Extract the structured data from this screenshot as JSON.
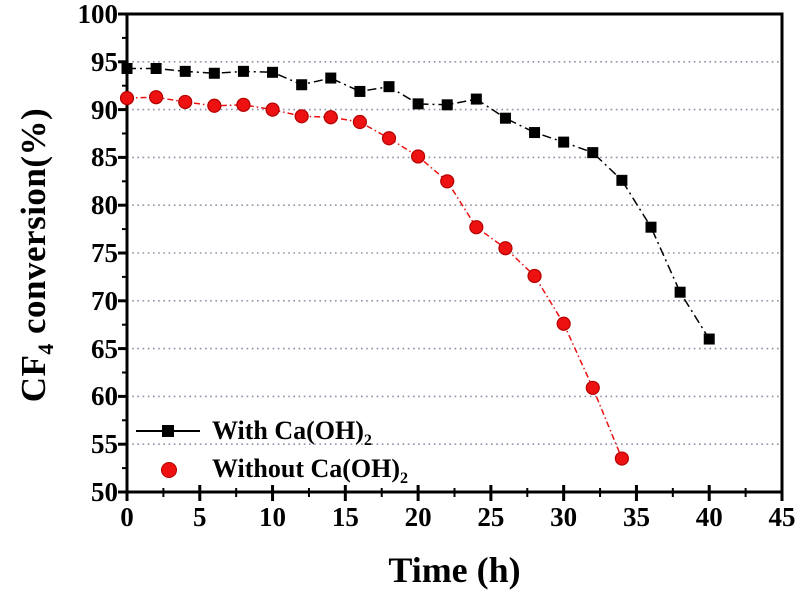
{
  "labels": {
    "ylabel_main": "CF",
    "ylabel_sub": "4",
    "ylabel_rest": " conversion(%)",
    "xlabel": "Time (h)"
  },
  "legend": {
    "item1_main": "With Ca(OH)",
    "item1_sub": "2",
    "item2_main": "Without Ca(OH)",
    "item2_sub": "2"
  },
  "chart_data": {
    "type": "line",
    "title": "",
    "xlabel": "Time (h)",
    "ylabel": "CF4 conversion(%)",
    "xlim": [
      0,
      45
    ],
    "ylim": [
      50,
      100
    ],
    "x_ticks": [
      0,
      5,
      10,
      15,
      20,
      25,
      30,
      35,
      40,
      45
    ],
    "y_ticks": [
      50,
      55,
      60,
      65,
      70,
      75,
      80,
      85,
      90,
      95,
      100
    ],
    "grid": "horizontal-dotted",
    "grid_color": "#8f8fa8",
    "legend_position": "lower-left",
    "series": [
      {
        "name": "With Ca(OH)2",
        "label_main": "With Ca(OH)",
        "label_sub": "2",
        "marker": "square",
        "color": "#000000",
        "edge_color": "#000000",
        "dash": "9 4 2 4",
        "x": [
          0,
          2,
          4,
          6,
          8,
          10,
          12,
          14,
          16,
          18,
          20,
          22,
          24,
          26,
          28,
          30,
          32,
          34,
          36,
          38,
          40
        ],
        "y": [
          94.3,
          94.3,
          94.0,
          93.8,
          94.0,
          93.9,
          92.6,
          93.3,
          91.9,
          92.4,
          90.6,
          90.5,
          91.1,
          89.1,
          87.6,
          86.6,
          85.5,
          82.6,
          77.7,
          70.9,
          66.0
        ]
      },
      {
        "name": "Without Ca(OH)2",
        "label_main": "Without Ca(OH)",
        "label_sub": "2",
        "marker": "circle",
        "color": "#ed1111",
        "edge_color": "#b40000",
        "dash": "6 3 1.5 3",
        "x": [
          0,
          2,
          4,
          6,
          8,
          10,
          12,
          14,
          16,
          18,
          20,
          22,
          24,
          26,
          28,
          30,
          32,
          34
        ],
        "y": [
          91.2,
          91.3,
          90.8,
          90.4,
          90.5,
          90.0,
          89.3,
          89.2,
          88.7,
          87.0,
          85.1,
          82.5,
          77.7,
          75.5,
          72.6,
          67.6,
          60.9,
          53.5
        ]
      }
    ]
  }
}
